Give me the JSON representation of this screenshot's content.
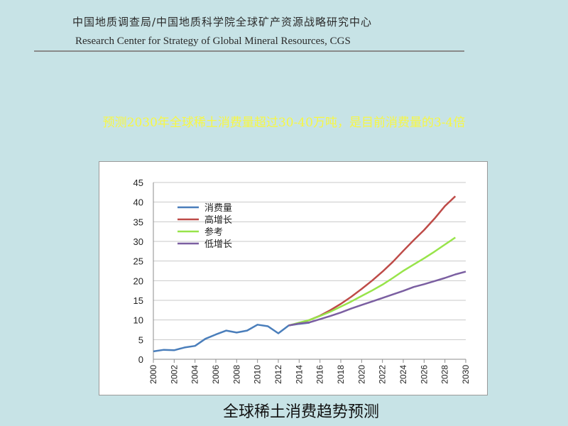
{
  "header": {
    "title_cn": "中国地质调查局/中国地质科学院全球矿产资源战略研究中心",
    "title_en": "Research Center for Strategy of Global Mineral Resources, CGS"
  },
  "headline": "预测2030年全球稀土消费量超过30-40万吨，是目前消费量的3-4倍",
  "caption": "全球稀土消费趋势预测",
  "chart_data": {
    "type": "line",
    "title": "",
    "xlabel": "",
    "ylabel": "",
    "ylim": [
      0,
      45
    ],
    "yticks": [
      0,
      5,
      10,
      15,
      20,
      25,
      30,
      35,
      40,
      45
    ],
    "xlim": [
      2000,
      2030
    ],
    "xticks": [
      2000,
      2002,
      2004,
      2006,
      2008,
      2010,
      2012,
      2014,
      2016,
      2018,
      2020,
      2022,
      2024,
      2026,
      2028,
      2030
    ],
    "grid": "horizontal",
    "legend_position": "top-left",
    "series": [
      {
        "name": "消费量",
        "color": "#4a7ebb",
        "points": [
          [
            2000,
            2.0
          ],
          [
            2001,
            2.4
          ],
          [
            2002,
            2.3
          ],
          [
            2003,
            3.0
          ],
          [
            2004,
            3.4
          ],
          [
            2005,
            5.2
          ],
          [
            2006,
            6.3
          ],
          [
            2007,
            7.3
          ],
          [
            2008,
            6.8
          ],
          [
            2009,
            7.3
          ],
          [
            2010,
            8.8
          ],
          [
            2011,
            8.4
          ],
          [
            2012,
            6.6
          ],
          [
            2013,
            8.6
          ],
          [
            2014,
            9.0
          ],
          [
            2015,
            9.3
          ]
        ]
      },
      {
        "name": "高增长",
        "color": "#be4b48",
        "points": [
          [
            2013,
            8.6
          ],
          [
            2014,
            9.2
          ],
          [
            2015,
            10.0
          ],
          [
            2016,
            11.1
          ],
          [
            2017,
            12.5
          ],
          [
            2018,
            14.1
          ],
          [
            2019,
            15.9
          ],
          [
            2020,
            17.9
          ],
          [
            2021,
            20.0
          ],
          [
            2022,
            22.3
          ],
          [
            2023,
            24.8
          ],
          [
            2024,
            27.6
          ],
          [
            2025,
            30.3
          ],
          [
            2026,
            32.9
          ],
          [
            2027,
            35.8
          ],
          [
            2028,
            39.0
          ],
          [
            2029,
            41.5
          ]
        ]
      },
      {
        "name": "参考",
        "color": "#98e44a",
        "points": [
          [
            2013,
            8.6
          ],
          [
            2014,
            9.3
          ],
          [
            2015,
            10.0
          ],
          [
            2016,
            11.0
          ],
          [
            2017,
            12.1
          ],
          [
            2018,
            13.4
          ],
          [
            2019,
            14.7
          ],
          [
            2020,
            16.1
          ],
          [
            2021,
            17.5
          ],
          [
            2022,
            19.0
          ],
          [
            2023,
            20.7
          ],
          [
            2024,
            22.5
          ],
          [
            2025,
            24.1
          ],
          [
            2026,
            25.7
          ],
          [
            2027,
            27.4
          ],
          [
            2028,
            29.2
          ],
          [
            2029,
            31.0
          ]
        ]
      },
      {
        "name": "低增长",
        "color": "#7b5fa1",
        "points": [
          [
            2013,
            8.6
          ],
          [
            2014,
            9.1
          ],
          [
            2015,
            9.4
          ],
          [
            2016,
            10.2
          ],
          [
            2017,
            11.0
          ],
          [
            2018,
            11.9
          ],
          [
            2019,
            12.9
          ],
          [
            2020,
            13.8
          ],
          [
            2021,
            14.7
          ],
          [
            2022,
            15.6
          ],
          [
            2023,
            16.5
          ],
          [
            2024,
            17.4
          ],
          [
            2025,
            18.4
          ],
          [
            2026,
            19.1
          ],
          [
            2027,
            19.9
          ],
          [
            2028,
            20.7
          ],
          [
            2029,
            21.6
          ],
          [
            2030,
            22.3
          ]
        ]
      }
    ]
  }
}
